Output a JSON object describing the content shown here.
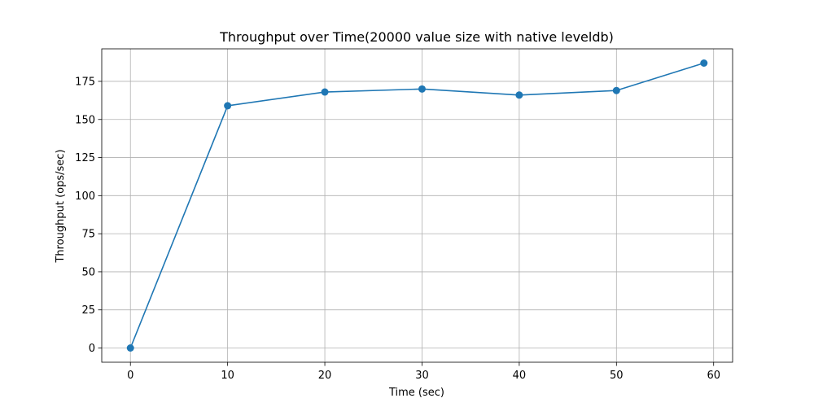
{
  "chart_data": {
    "type": "line",
    "title": "Throughput over Time(20000 value size with native leveldb)",
    "xlabel": "Time (sec)",
    "ylabel": "Throughput (ops/sec)",
    "xlim": [
      -2.95,
      61.95
    ],
    "ylim": [
      -9.35,
      196.35
    ],
    "xticks": [
      0,
      10,
      20,
      30,
      40,
      50,
      60
    ],
    "yticks": [
      0,
      25,
      50,
      75,
      100,
      125,
      150,
      175
    ],
    "grid": true,
    "series": [
      {
        "color": "#1f77b4",
        "marker": "circle",
        "x": [
          0,
          10,
          20,
          30,
          40,
          50,
          59
        ],
        "y": [
          0,
          159,
          168,
          170,
          166,
          169,
          187
        ]
      }
    ]
  }
}
